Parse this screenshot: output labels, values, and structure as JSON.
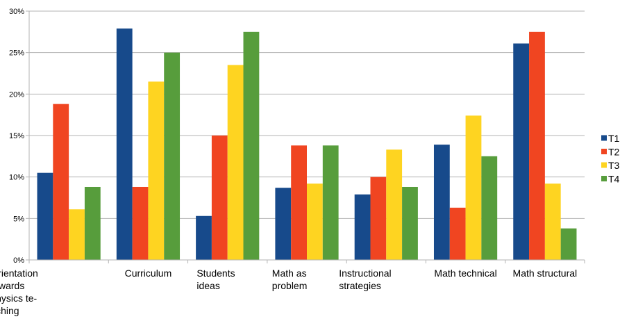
{
  "chart_data": {
    "type": "bar",
    "categories": [
      [
        "Orientation",
        "towards",
        "physics te-",
        "aching"
      ],
      [
        "Curriculum"
      ],
      [
        "Students",
        "ideas"
      ],
      [
        "Math as",
        "problem"
      ],
      [
        "Instructional",
        "strategies"
      ],
      [
        "Math technical"
      ],
      [
        "Math structural"
      ]
    ],
    "series": [
      {
        "name": "T1",
        "color": "#174a8b",
        "values": [
          10.5,
          27.9,
          5.3,
          8.7,
          7.9,
          13.9,
          26.1
        ]
      },
      {
        "name": "T2",
        "color": "#f04521",
        "values": [
          18.8,
          8.8,
          15.0,
          13.8,
          10.0,
          6.3,
          27.5
        ]
      },
      {
        "name": "T3",
        "color": "#fed421",
        "values": [
          6.1,
          21.5,
          23.5,
          9.2,
          13.3,
          17.4,
          9.2
        ]
      },
      {
        "name": "T4",
        "color": "#579d3c",
        "values": [
          8.8,
          25.0,
          27.5,
          13.8,
          8.8,
          12.5,
          3.8
        ]
      }
    ],
    "yticks": [
      "0%",
      "5%",
      "10%",
      "15%",
      "20%",
      "25%",
      "30%"
    ],
    "ylim": [
      0,
      30
    ],
    "grid": true,
    "legend_position": "right",
    "title": "",
    "xlabel": "",
    "ylabel": ""
  }
}
